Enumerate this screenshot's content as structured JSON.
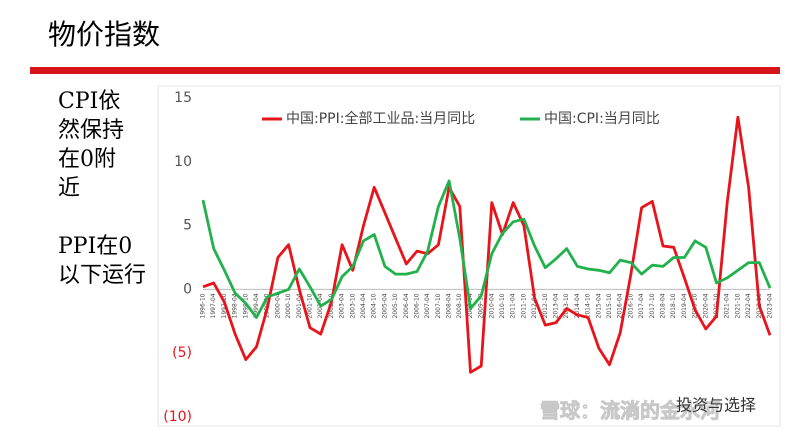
{
  "slide_title": "物价指数",
  "notes": [
    [
      "CPI依",
      "然保持",
      "在0附",
      "近"
    ],
    [
      "PPI在0",
      "以下运行"
    ]
  ],
  "watermark": [
    "雪球：流淌的金水河",
    "投资与选择"
  ],
  "chart_data": {
    "type": "line",
    "x": [
      "1996-10",
      "1997-04",
      "1997-10",
      "1998-04",
      "1998-10",
      "1999-04",
      "1999-10",
      "2000-04",
      "2000-10",
      "2001-04",
      "2001-10",
      "2002-04",
      "2002-10",
      "2003-04",
      "2003-10",
      "2004-04",
      "2004-10",
      "2005-04",
      "2005-10",
      "2006-04",
      "2006-10",
      "2007-04",
      "2007-10",
      "2008-04",
      "2008-10",
      "2009-04",
      "2009-10",
      "2010-04",
      "2010-10",
      "2011-04",
      "2011-10",
      "2012-04",
      "2012-10",
      "2013-04",
      "2013-10",
      "2014-04",
      "2014-10",
      "2015-04",
      "2015-10",
      "2016-04",
      "2016-10",
      "2017-04",
      "2017-10",
      "2018-04",
      "2018-10",
      "2019-04",
      "2019-10",
      "2020-04",
      "2020-10",
      "2021-04",
      "2021-10",
      "2022-04",
      "2022-10",
      "2023-04"
    ],
    "series": [
      {
        "name": "中国:PPI:全部工业品:当月同比",
        "color": "#e8141b",
        "values": [
          0.2,
          0.5,
          -1,
          -3.5,
          -5.5,
          -4.5,
          -1.5,
          2.5,
          3.5,
          0,
          -3,
          -3.5,
          -1,
          3.5,
          1.5,
          5,
          8,
          6,
          4,
          2,
          3,
          2.8,
          3.5,
          8,
          6.5,
          -6.5,
          -6,
          6.8,
          4.3,
          6.8,
          5,
          -0.7,
          -2.8,
          -2.6,
          -1.5,
          -2,
          -2.2,
          -4.6,
          -5.9,
          -3.4,
          1.2,
          6.4,
          6.9,
          3.4,
          3.3,
          0.9,
          -1.6,
          -3.1,
          -2.1,
          6.8,
          13.5,
          8,
          -1.3,
          -3.6
        ]
      },
      {
        "name": "中国:CPI:当月同比",
        "color": "#22b14c",
        "values": [
          7,
          3.2,
          1.5,
          -0.3,
          -1.1,
          -2.2,
          -0.6,
          -0.3,
          0,
          1.6,
          0.2,
          -1.3,
          -0.8,
          1,
          1.8,
          3.8,
          4.3,
          1.8,
          1.2,
          1.2,
          1.4,
          3,
          6.5,
          8.5,
          4,
          -1.5,
          -0.5,
          2.8,
          4.4,
          5.3,
          5.5,
          3.4,
          1.7,
          2.4,
          3.2,
          1.8,
          1.6,
          1.5,
          1.3,
          2.3,
          2.1,
          1.2,
          1.9,
          1.8,
          2.5,
          2.5,
          3.8,
          3.3,
          0.5,
          0.9,
          1.5,
          2.1,
          2.1,
          0.1
        ]
      }
    ],
    "ylim": [
      -10,
      15
    ],
    "yticks": [
      {
        "value": -10,
        "label": "(10)"
      },
      {
        "value": -5,
        "label": "(5)"
      },
      0,
      5,
      10,
      15
    ],
    "negative_tick_color": "#e8141b",
    "grid": false,
    "legend": "top"
  }
}
